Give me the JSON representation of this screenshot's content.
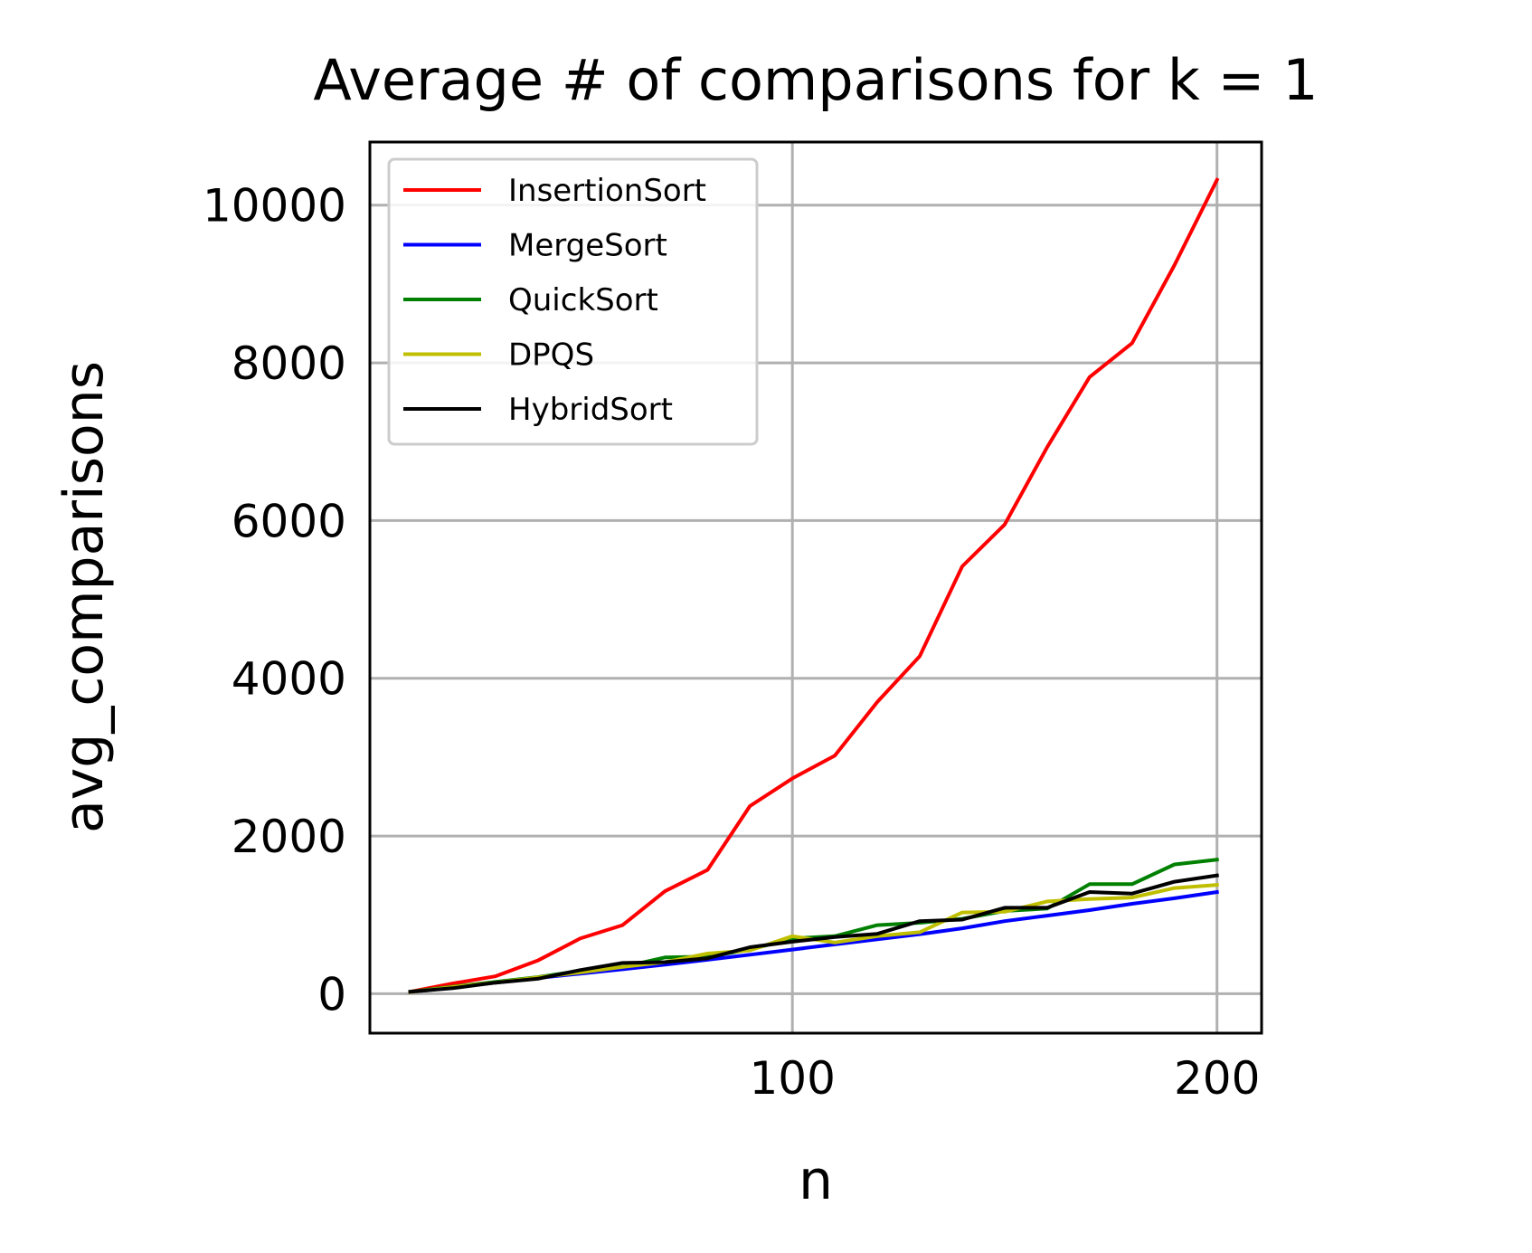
{
  "chart_data": {
    "type": "line",
    "title": "Average # of comparisons for k = 1",
    "xlabel": "n",
    "ylabel": "avg_comparisons",
    "xlim": [
      0.5,
      210.5
    ],
    "ylim": [
      -500,
      10800
    ],
    "xticks": [
      100,
      200
    ],
    "yticks": [
      0,
      2000,
      4000,
      6000,
      8000,
      10000
    ],
    "grid": true,
    "legend_position": "top-left",
    "x": [
      10,
      20,
      30,
      40,
      50,
      60,
      70,
      80,
      90,
      100,
      110,
      120,
      130,
      140,
      150,
      160,
      170,
      180,
      190,
      200
    ],
    "series": [
      {
        "name": "InsertionSort",
        "color": "#ff0000",
        "values": [
          25,
          130,
          220,
          420,
          700,
          870,
          1300,
          1570,
          2380,
          2730,
          3020,
          3700,
          4280,
          5420,
          5950,
          6930,
          7820,
          8250,
          9240,
          10320
        ]
      },
      {
        "name": "MergeSort",
        "color": "#0000ff",
        "values": [
          20,
          80,
          140,
          200,
          255,
          310,
          370,
          430,
          495,
          560,
          625,
          690,
          755,
          830,
          920,
          990,
          1060,
          1140,
          1210,
          1290
        ]
      },
      {
        "name": "QuickSort",
        "color": "#008000",
        "values": [
          25,
          90,
          150,
          210,
          290,
          340,
          460,
          470,
          560,
          700,
          730,
          870,
          900,
          950,
          1050,
          1080,
          1390,
          1390,
          1640,
          1700
        ]
      },
      {
        "name": "DPQS",
        "color": "#bfbf00",
        "values": [
          20,
          85,
          140,
          205,
          270,
          340,
          400,
          510,
          550,
          730,
          650,
          730,
          780,
          1030,
          1040,
          1170,
          1200,
          1220,
          1340,
          1380
        ]
      },
      {
        "name": "HybridSort",
        "color": "#000000",
        "values": [
          25,
          70,
          140,
          190,
          300,
          390,
          400,
          450,
          590,
          660,
          720,
          760,
          920,
          940,
          1090,
          1090,
          1290,
          1270,
          1420,
          1500
        ]
      }
    ]
  }
}
